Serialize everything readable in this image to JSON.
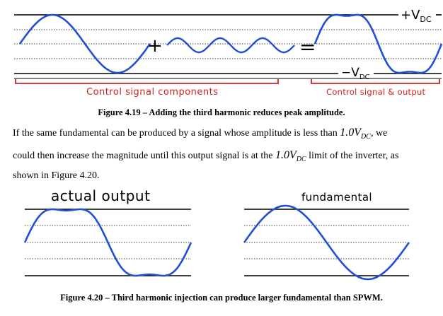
{
  "figure_4_19": {
    "label_plus_vdc": "+V",
    "label_plus_vdc_sub": "DC",
    "label_minus_vdc": "−V",
    "label_minus_vdc_sub": "DC",
    "plus_sign": "+",
    "equals_sign": "=",
    "bracket_left_label": "Control signal components",
    "bracket_right_label": "Control signal & output",
    "caption": "Figure 4.19 – Adding the third harmonic reduces peak amplitude."
  },
  "paragraph": {
    "line1_pre": "If the same fundamental can be produced by a signal whose amplitude is less than",
    "line1_value": "1.0V",
    "line1_sub": "DC",
    "line1_post": ", we",
    "line2_pre": "could then increase the magnitude until this output signal is at the",
    "line2_value": "1.0V",
    "line2_sub": "DC",
    "line2_post": "limit of the inverter, as",
    "line3": "shown in Figure 4.20."
  },
  "figure_4_20": {
    "left_label": "actual output",
    "right_label": "fundamental",
    "caption": "Figure 4.20 – Third harmonic injection can produce larger fundamental than SPWM."
  },
  "colors": {
    "waveform": "#1f4fd6",
    "bracket": "#d42020",
    "ink": "#000000"
  }
}
